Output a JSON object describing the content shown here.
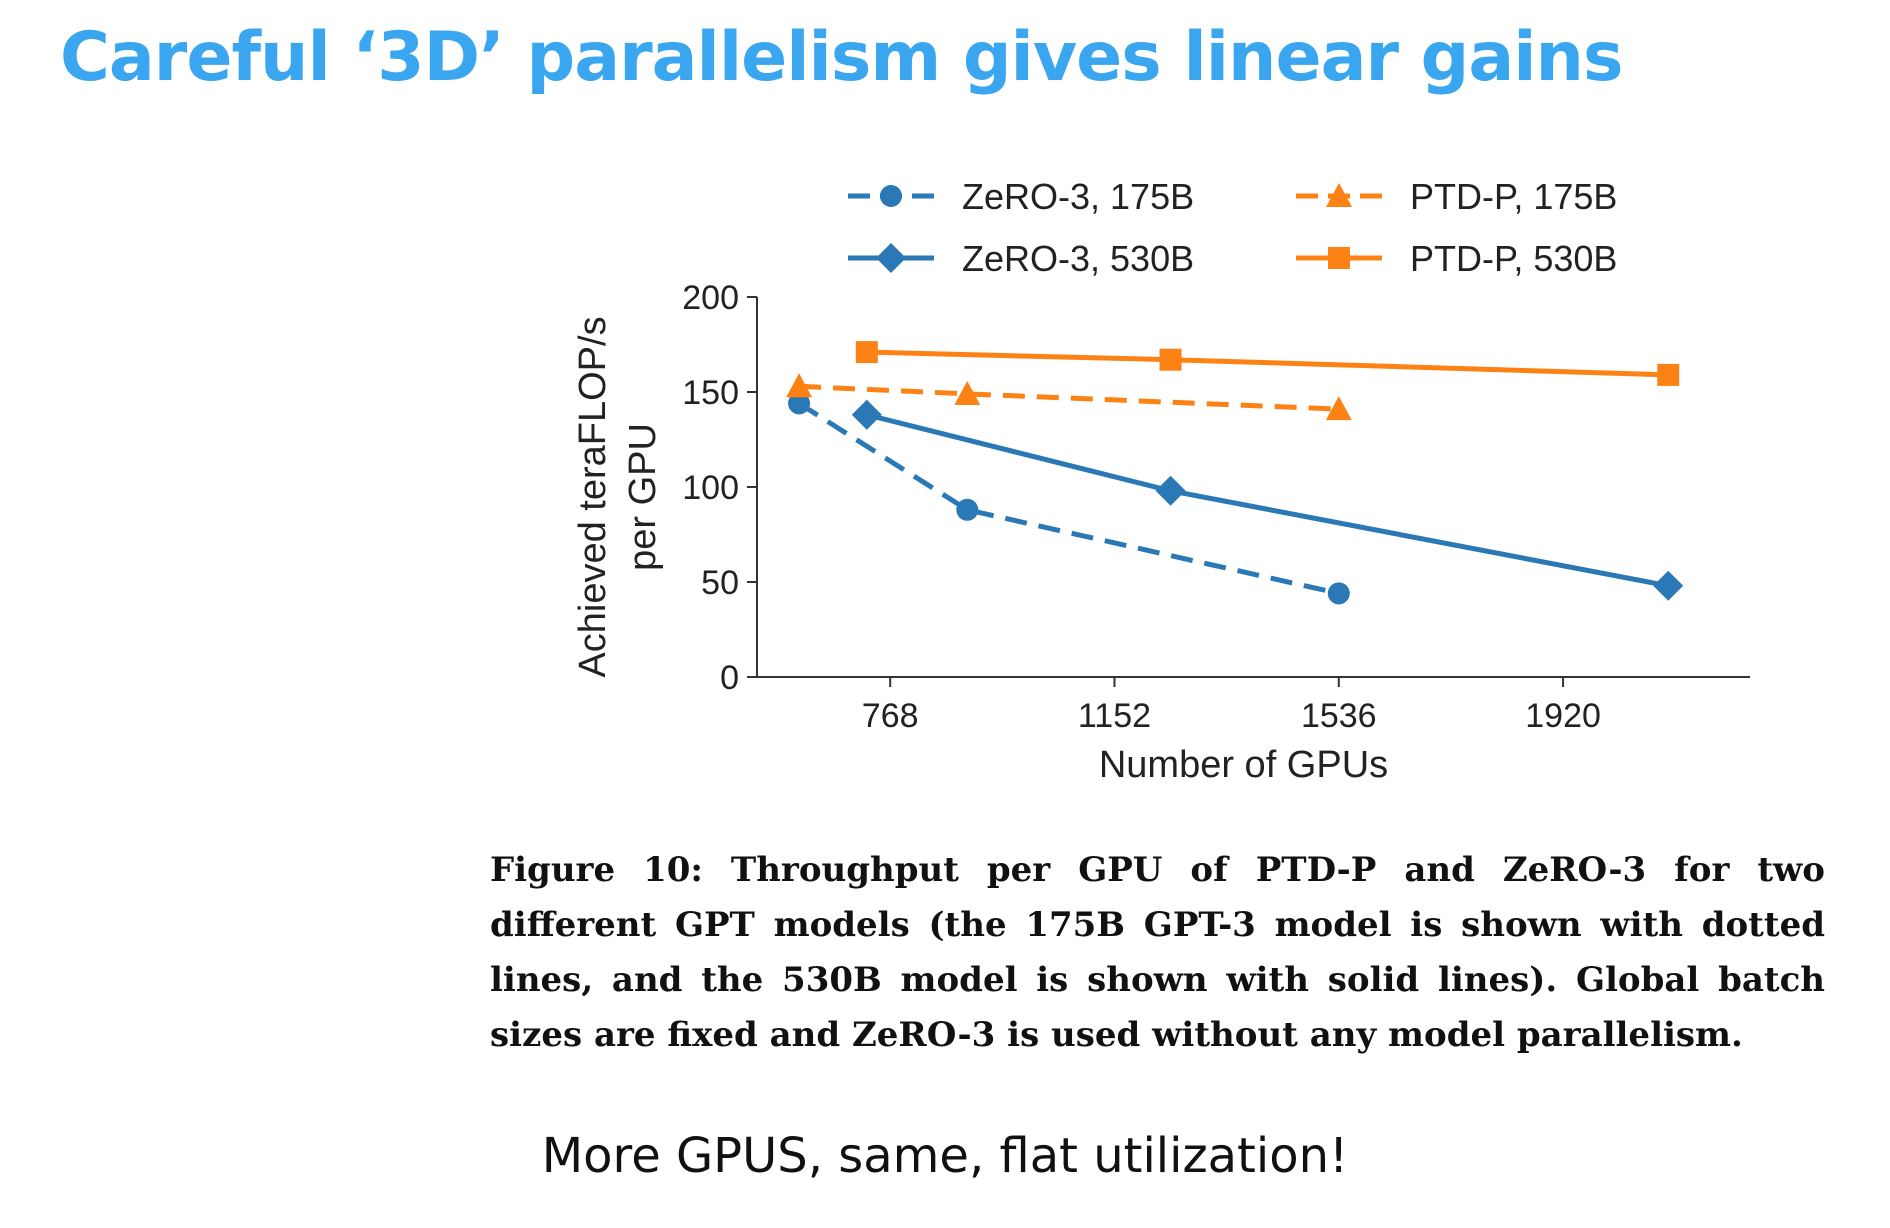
{
  "slide": {
    "title": "Careful ‘3D’ parallelism gives linear gains",
    "caption": "Figure 10: Throughput per GPU of PTD-P and ZeRO-3 for two different GPT models (the 175B GPT-3 model is shown with dotted lines, and the 530B model is shown with solid lines). Global batch sizes are fixed and ZeRO-3 is used without any model parallelism.",
    "takeaway": "More GPUS, same, flat utilization!"
  },
  "chart_data": {
    "type": "line",
    "xlabel": "Number of GPUs",
    "ylabel": "Achieved teraFLOP/s per GPU",
    "ylabel_lines": [
      "Achieved teraFLOP/s",
      "per GPU"
    ],
    "xlim": [
      540,
      2240
    ],
    "ylim": [
      0,
      200
    ],
    "xticks": [
      768,
      1152,
      1536,
      1920
    ],
    "yticks": [
      0,
      50,
      100,
      150,
      200
    ],
    "grid": false,
    "legend_position": "top",
    "series": [
      {
        "name": "ZeRO-3, 175B",
        "color": "#2a78b5",
        "line_style": "dashed",
        "marker": "circle",
        "x": [
          612,
          900,
          1536
        ],
        "y": [
          144,
          88,
          44
        ]
      },
      {
        "name": "PTD-P, 175B",
        "color": "#fd8215",
        "line_style": "dashed",
        "marker": "triangle",
        "x": [
          612,
          900,
          1536
        ],
        "y": [
          153,
          149,
          141
        ]
      },
      {
        "name": "ZeRO-3, 530B",
        "color": "#2a78b5",
        "line_style": "solid",
        "marker": "diamond",
        "x": [
          728,
          1248,
          2100
        ],
        "y": [
          138,
          98,
          48
        ]
      },
      {
        "name": "PTD-P, 530B",
        "color": "#fd8215",
        "line_style": "solid",
        "marker": "square",
        "x": [
          728,
          1248,
          2100
        ],
        "y": [
          171,
          167,
          159
        ]
      }
    ]
  }
}
